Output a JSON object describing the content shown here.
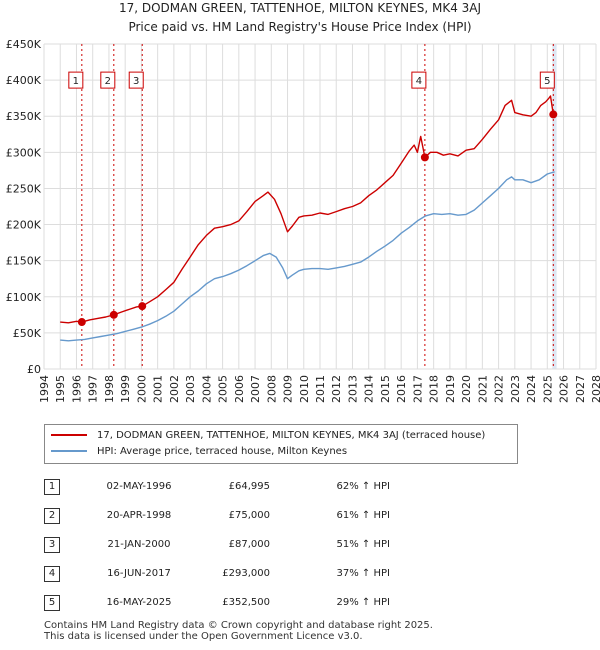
{
  "chart_data": {
    "type": "line",
    "title": "17, DODMAN GREEN, TATTENHOE, MILTON KEYNES, MK4 3AJ",
    "subtitle": "Price paid vs. HM Land Registry's House Price Index (HPI)",
    "xlim": [
      1994,
      2028
    ],
    "ylim": [
      0,
      450000
    ],
    "x_ticks": [
      1994,
      1995,
      1996,
      1997,
      1998,
      1999,
      2000,
      2001,
      2002,
      2003,
      2004,
      2005,
      2006,
      2007,
      2008,
      2009,
      2010,
      2011,
      2012,
      2013,
      2014,
      2015,
      2016,
      2017,
      2018,
      2019,
      2020,
      2021,
      2022,
      2023,
      2024,
      2025,
      2026,
      2027,
      2028
    ],
    "y_ticks": [
      {
        "value": 0,
        "label": "£0"
      },
      {
        "value": 50000,
        "label": "£50K"
      },
      {
        "value": 100000,
        "label": "£100K"
      },
      {
        "value": 150000,
        "label": "£150K"
      },
      {
        "value": 200000,
        "label": "£200K"
      },
      {
        "value": 250000,
        "label": "£250K"
      },
      {
        "value": 300000,
        "label": "£300K"
      },
      {
        "value": 350000,
        "label": "£350K"
      },
      {
        "value": 400000,
        "label": "£400K"
      },
      {
        "value": 450000,
        "label": "£450K"
      }
    ],
    "series": [
      {
        "name": "17, DODMAN GREEN, TATTENHOE, MILTON KEYNES, MK4 3AJ (terraced house)",
        "color": "#cc0000",
        "x": [
          1995.0,
          1995.5,
          1996.0,
          1996.33,
          1996.8,
          1997.3,
          1997.8,
          1998.3,
          1998.8,
          1999.3,
          1999.7,
          2000.05,
          2000.5,
          2001.0,
          2001.5,
          2002.0,
          2002.5,
          2003.0,
          2003.5,
          2004.0,
          2004.5,
          2005.0,
          2005.5,
          2006.0,
          2006.5,
          2007.0,
          2007.5,
          2007.8,
          2008.2,
          2008.6,
          2009.0,
          2009.3,
          2009.7,
          2010.0,
          2010.5,
          2011.0,
          2011.5,
          2012.0,
          2012.5,
          2013.0,
          2013.5,
          2014.0,
          2014.5,
          2015.0,
          2015.5,
          2016.0,
          2016.5,
          2016.8,
          2017.0,
          2017.2,
          2017.46,
          2017.8,
          2018.2,
          2018.6,
          2019.0,
          2019.5,
          2020.0,
          2020.5,
          2021.0,
          2021.5,
          2022.0,
          2022.4,
          2022.8,
          2023.0,
          2023.5,
          2024.0,
          2024.3,
          2024.6,
          2024.9,
          2025.1,
          2025.2,
          2025.37,
          2025.45
        ],
        "y": [
          65000,
          64000,
          66000,
          64995,
          68000,
          70000,
          72000,
          75000,
          79000,
          83000,
          86000,
          87000,
          93000,
          100000,
          110000,
          120000,
          138000,
          155000,
          172000,
          185000,
          195000,
          197000,
          200000,
          205000,
          218000,
          232000,
          240000,
          245000,
          235000,
          215000,
          190000,
          198000,
          210000,
          212000,
          213000,
          216000,
          214000,
          218000,
          222000,
          225000,
          230000,
          240000,
          248000,
          258000,
          268000,
          285000,
          302000,
          310000,
          300000,
          322000,
          293000,
          300000,
          300000,
          296000,
          298000,
          295000,
          303000,
          305000,
          318000,
          332000,
          345000,
          365000,
          372000,
          355000,
          352000,
          350000,
          355000,
          365000,
          370000,
          375000,
          378000,
          352500,
          350000
        ]
      },
      {
        "name": "HPI: Average price, terraced house, Milton Keynes",
        "color": "#6699cc",
        "x": [
          1995.0,
          1995.5,
          1996.0,
          1996.5,
          1997.0,
          1997.5,
          1998.0,
          1998.5,
          1999.0,
          1999.5,
          2000.0,
          2000.5,
          2001.0,
          2001.5,
          2002.0,
          2002.5,
          2003.0,
          2003.5,
          2004.0,
          2004.5,
          2005.0,
          2005.5,
          2006.0,
          2006.5,
          2007.0,
          2007.5,
          2007.9,
          2008.3,
          2008.7,
          2009.0,
          2009.3,
          2009.7,
          2010.0,
          2010.5,
          2011.0,
          2011.5,
          2012.0,
          2012.5,
          2013.0,
          2013.5,
          2014.0,
          2014.5,
          2015.0,
          2015.5,
          2016.0,
          2016.5,
          2017.0,
          2017.5,
          2018.0,
          2018.5,
          2019.0,
          2019.5,
          2020.0,
          2020.5,
          2021.0,
          2021.5,
          2022.0,
          2022.5,
          2022.8,
          2023.0,
          2023.5,
          2024.0,
          2024.5,
          2025.0,
          2025.45
        ],
        "y": [
          40000,
          39000,
          40000,
          41000,
          43000,
          45000,
          47000,
          49000,
          52000,
          55000,
          58000,
          62000,
          67000,
          73000,
          80000,
          90000,
          100000,
          108000,
          118000,
          125000,
          128000,
          132000,
          137000,
          143000,
          150000,
          157000,
          160000,
          155000,
          140000,
          125000,
          130000,
          136000,
          138000,
          139000,
          139000,
          138000,
          140000,
          142000,
          145000,
          148000,
          155000,
          163000,
          170000,
          178000,
          188000,
          196000,
          205000,
          212000,
          215000,
          214000,
          215000,
          213000,
          214000,
          220000,
          230000,
          240000,
          250000,
          262000,
          266000,
          262000,
          262000,
          258000,
          262000,
          270000,
          273000
        ]
      }
    ],
    "sales": [
      {
        "n": "1",
        "x": 1996.33,
        "date": "02-MAY-1996",
        "price": "£64,995",
        "value": 64995,
        "hpi": "62% ↑ HPI"
      },
      {
        "n": "2",
        "x": 1998.3,
        "date": "20-APR-1998",
        "price": "£75,000",
        "value": 75000,
        "hpi": "61% ↑ HPI"
      },
      {
        "n": "3",
        "x": 2000.05,
        "date": "21-JAN-2000",
        "price": "£87,000",
        "value": 87000,
        "hpi": "51% ↑ HPI"
      },
      {
        "n": "4",
        "x": 2017.46,
        "date": "16-JUN-2017",
        "price": "£293,000",
        "value": 293000,
        "hpi": "37% ↑ HPI"
      },
      {
        "n": "5",
        "x": 2025.37,
        "date": "16-MAY-2025",
        "price": "£352,500",
        "value": 352500,
        "hpi": "29% ↑ HPI"
      }
    ],
    "marker_label_value": 400000,
    "shade_color": "#dde6f3"
  },
  "legend": {
    "red_label": "17, DODMAN GREEN, TATTENHOE, MILTON KEYNES, MK4 3AJ (terraced house)",
    "blue_label": "HPI: Average price, terraced house, Milton Keynes"
  },
  "footer": {
    "line1": "Contains HM Land Registry data © Crown copyright and database right 2025.",
    "line2": "This data is licensed under the Open Government Licence v3.0."
  }
}
